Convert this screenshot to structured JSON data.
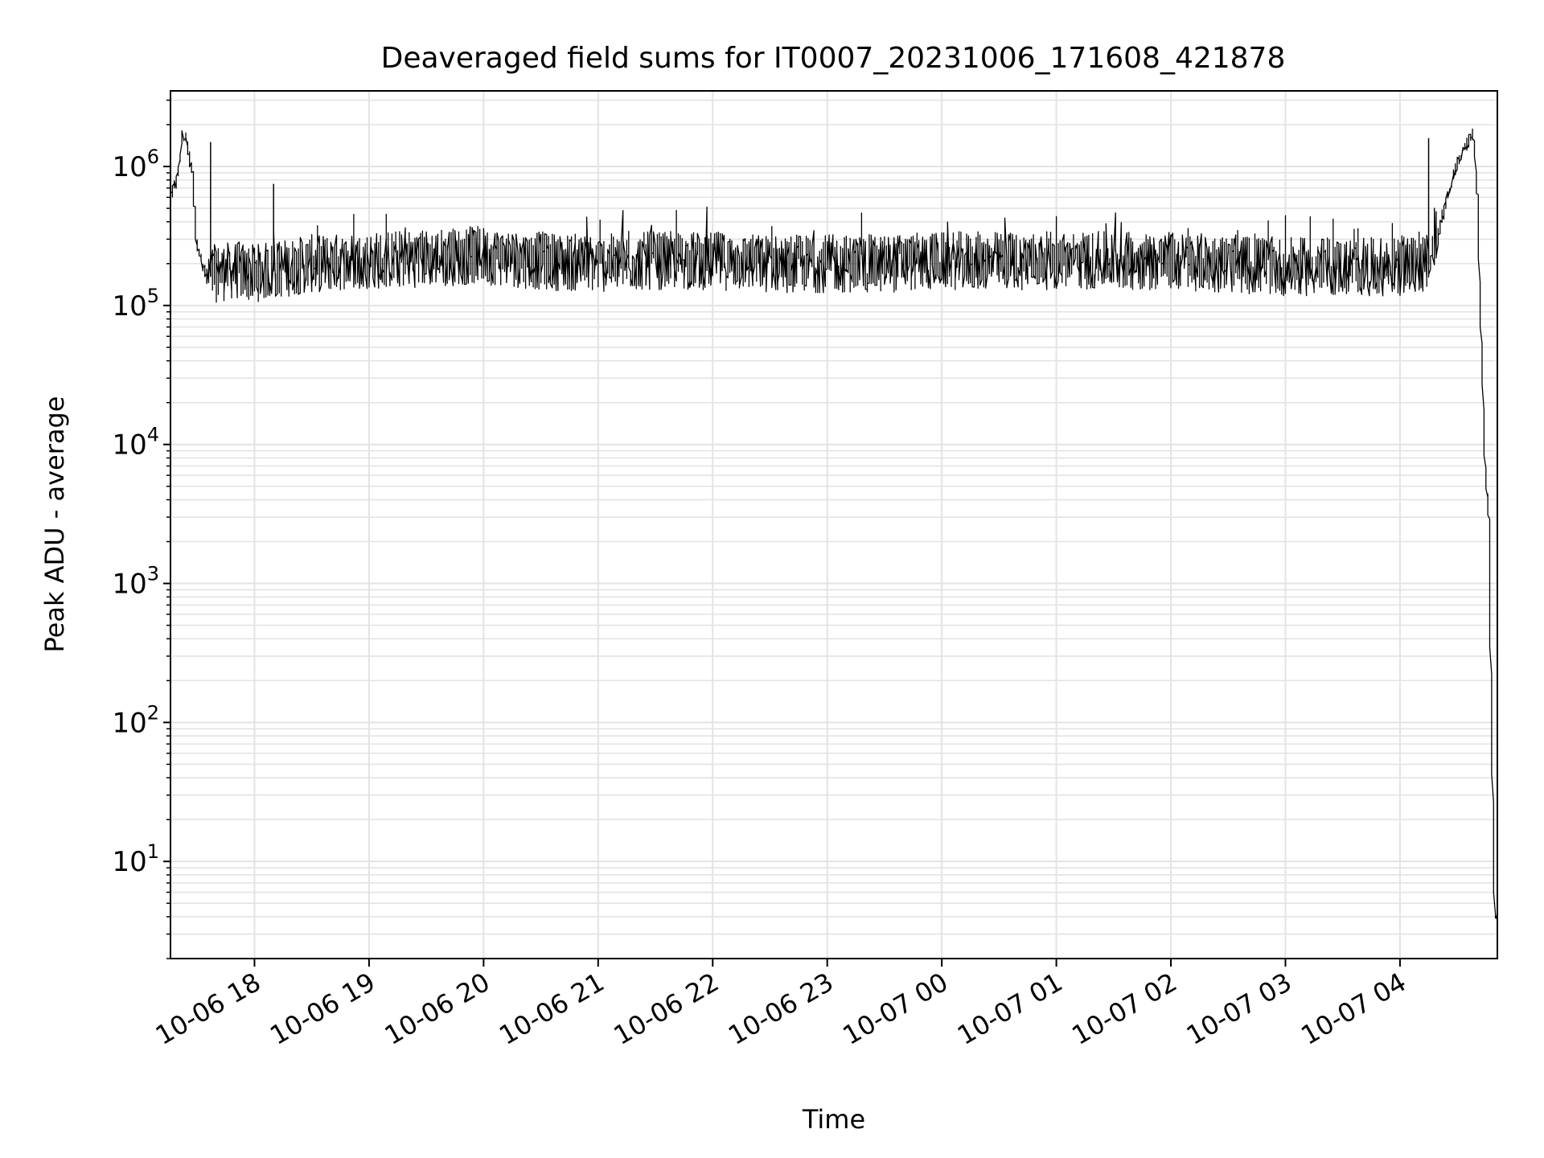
{
  "chart_data": {
    "type": "line",
    "title": "Deaveraged field sums for IT0007_20231006_171608_421878",
    "xlabel": "Time",
    "ylabel": "Peak ADU - average",
    "yscale": "log",
    "ylim": [
      2,
      3500000
    ],
    "xlim": [
      "2023-10-06 17:16",
      "2023-10-07 04:51"
    ],
    "grid": true,
    "line_color": "#000000",
    "grid_color": "#e3e3e3",
    "x_ticks": [
      {
        "t": "2023-10-06 18:00",
        "label": "10-06 18"
      },
      {
        "t": "2023-10-06 19:00",
        "label": "10-06 19"
      },
      {
        "t": "2023-10-06 20:00",
        "label": "10-06 20"
      },
      {
        "t": "2023-10-06 21:00",
        "label": "10-06 21"
      },
      {
        "t": "2023-10-06 22:00",
        "label": "10-06 22"
      },
      {
        "t": "2023-10-06 23:00",
        "label": "10-06 23"
      },
      {
        "t": "2023-10-07 00:00",
        "label": "10-07 00"
      },
      {
        "t": "2023-10-07 01:00",
        "label": "10-07 01"
      },
      {
        "t": "2023-10-07 02:00",
        "label": "10-07 02"
      },
      {
        "t": "2023-10-07 03:00",
        "label": "10-07 03"
      },
      {
        "t": "2023-10-07 04:00",
        "label": "10-07 04"
      }
    ],
    "y_ticks": [
      {
        "value": 10,
        "base": "10",
        "exp": "1"
      },
      {
        "value": 100,
        "base": "10",
        "exp": "2"
      },
      {
        "value": 1000,
        "base": "10",
        "exp": "3"
      },
      {
        "value": 10000,
        "base": "10",
        "exp": "4"
      },
      {
        "value": 100000,
        "base": "10",
        "exp": "5"
      },
      {
        "value": 1000000,
        "base": "10",
        "exp": "6"
      }
    ],
    "series": [
      {
        "points": [
          [
            "2023-10-06 17:16",
            550000
          ],
          [
            "2023-10-06 17:18",
            700000
          ],
          [
            "2023-10-06 17:20",
            800000
          ],
          [
            "2023-10-06 17:23",
            1700000
          ],
          [
            "2023-10-06 17:25",
            1500000
          ],
          [
            "2023-10-06 17:28",
            900000
          ],
          [
            "2023-10-06 17:30",
            300000
          ],
          [
            "2023-10-06 17:33",
            200000
          ],
          [
            "2023-10-06 17:36",
            160000
          ],
          [
            "2023-10-06 17:40",
            170000
          ],
          [
            "2023-10-06 17:50",
            180000
          ],
          [
            "2023-10-06 18:00",
            170000
          ],
          [
            "2023-10-06 18:30",
            200000
          ],
          [
            "2023-10-06 19:00",
            210000
          ],
          [
            "2023-10-06 19:30",
            220000
          ],
          [
            "2023-10-06 20:00",
            230000
          ],
          [
            "2023-10-06 20:30",
            210000
          ],
          [
            "2023-10-06 21:00",
            200000
          ],
          [
            "2023-10-06 21:30",
            210000
          ],
          [
            "2023-10-06 22:00",
            210000
          ],
          [
            "2023-10-06 22:30",
            200000
          ],
          [
            "2023-10-06 23:00",
            200000
          ],
          [
            "2023-10-06 23:30",
            200000
          ],
          [
            "2023-10-07 00:00",
            210000
          ],
          [
            "2023-10-07 00:30",
            210000
          ],
          [
            "2023-10-07 01:00",
            210000
          ],
          [
            "2023-10-07 01:30",
            210000
          ],
          [
            "2023-10-07 02:00",
            210000
          ],
          [
            "2023-10-07 02:30",
            200000
          ],
          [
            "2023-10-07 03:00",
            190000
          ],
          [
            "2023-10-07 03:30",
            190000
          ],
          [
            "2023-10-07 04:00",
            190000
          ],
          [
            "2023-10-07 04:15",
            200000
          ],
          [
            "2023-10-07 04:20",
            300000
          ],
          [
            "2023-10-07 04:25",
            600000
          ],
          [
            "2023-10-07 04:30",
            1000000
          ],
          [
            "2023-10-07 04:35",
            1400000
          ],
          [
            "2023-10-07 04:39",
            1700000
          ],
          [
            "2023-10-07 04:41",
            600000
          ],
          [
            "2023-10-07 04:44",
            20000
          ],
          [
            "2023-10-07 04:45",
            8000
          ],
          [
            "2023-10-07 04:47",
            3000
          ],
          [
            "2023-10-07 04:50",
            4
          ]
        ],
        "spikes": [
          [
            "2023-10-06 17:37",
            1500000
          ],
          [
            "2023-10-06 18:10",
            750000
          ],
          [
            "2023-10-07 04:15",
            1600000
          ]
        ]
      }
    ]
  }
}
